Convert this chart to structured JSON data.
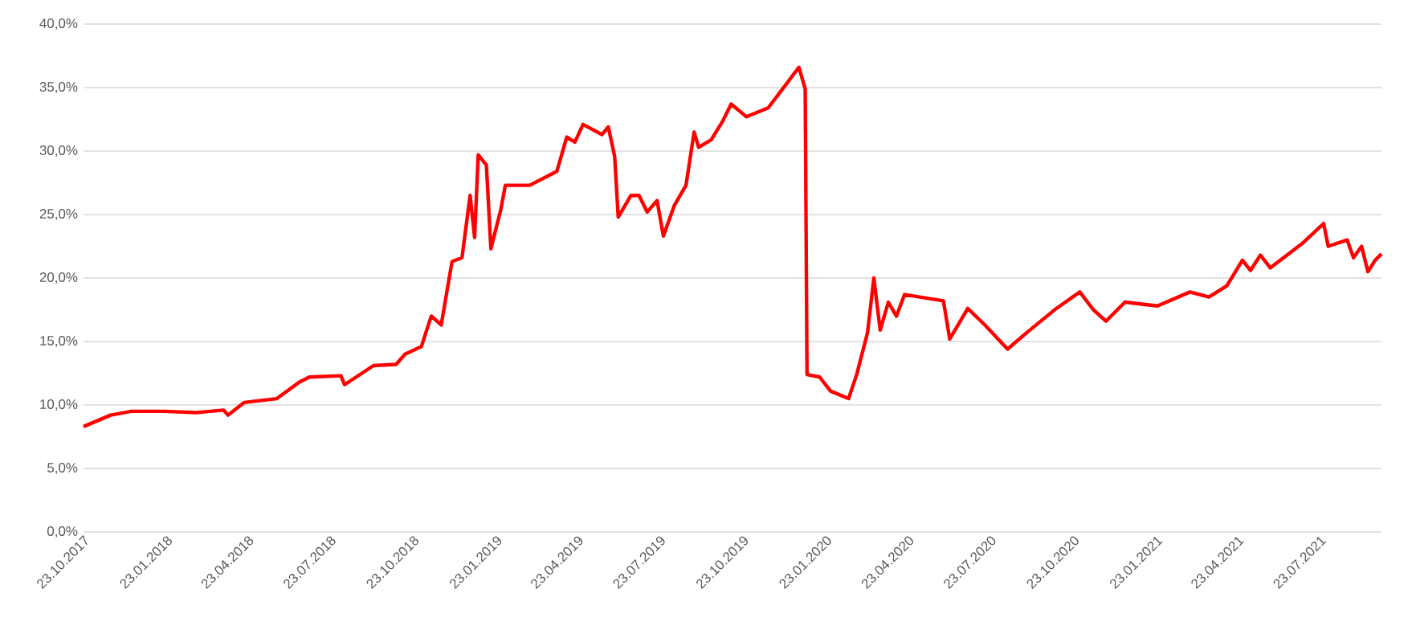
{
  "chart_data": {
    "type": "line",
    "grid": "y",
    "marker": "none",
    "line_style": "solid",
    "xlim": [
      "2017-10-23",
      "2021-09-29"
    ],
    "ylim": [
      0,
      40
    ],
    "yticks": [
      {
        "value": 0,
        "label": "0,0%"
      },
      {
        "value": 5,
        "label": "5,0%"
      },
      {
        "value": 10,
        "label": "10,0%"
      },
      {
        "value": 15,
        "label": "15,0%"
      },
      {
        "value": 20,
        "label": "20,0%"
      },
      {
        "value": 25,
        "label": "25,0%"
      },
      {
        "value": 30,
        "label": "30,0%"
      },
      {
        "value": 35,
        "label": "35,0%"
      },
      {
        "value": 40,
        "label": "40,0%"
      }
    ],
    "xticks": [
      {
        "value": "2017-10-23",
        "label": "23.10.2017"
      },
      {
        "value": "2018-01-23",
        "label": "23.01.2018"
      },
      {
        "value": "2018-04-23",
        "label": "23.04.2018"
      },
      {
        "value": "2018-07-23",
        "label": "23.07.2018"
      },
      {
        "value": "2018-10-23",
        "label": "23.10.2018"
      },
      {
        "value": "2019-01-23",
        "label": "23.01.2019"
      },
      {
        "value": "2019-04-23",
        "label": "23.04.2019"
      },
      {
        "value": "2019-07-23",
        "label": "23.07.2019"
      },
      {
        "value": "2019-10-23",
        "label": "23.10.2019"
      },
      {
        "value": "2020-01-23",
        "label": "23.01.2020"
      },
      {
        "value": "2020-04-23",
        "label": "23.04.2020"
      },
      {
        "value": "2020-07-23",
        "label": "23.07.2020"
      },
      {
        "value": "2020-10-23",
        "label": "23.10.2020"
      },
      {
        "value": "2021-01-23",
        "label": "23.01.2021"
      },
      {
        "value": "2021-04-23",
        "label": "23.04.2021"
      },
      {
        "value": "2021-07-23",
        "label": "23.07.2021"
      }
    ],
    "series": [
      {
        "color": "#ff0000",
        "x": [
          "2017-10-23",
          "2017-11-22",
          "2017-12-15",
          "2018-01-20",
          "2018-02-25",
          "2018-03-27",
          "2018-04-01",
          "2018-04-19",
          "2018-05-25",
          "2018-06-19",
          "2018-06-30",
          "2018-08-04",
          "2018-08-08",
          "2018-09-09",
          "2018-10-04",
          "2018-10-14",
          "2018-11-01",
          "2018-11-12",
          "2018-11-23",
          "2018-12-05",
          "2018-12-16",
          "2018-12-25",
          "2018-12-30",
          "2019-01-03",
          "2019-01-12",
          "2019-01-17",
          "2019-01-28",
          "2019-02-02",
          "2019-03-01",
          "2019-03-31",
          "2019-04-11",
          "2019-04-20",
          "2019-04-29",
          "2019-05-20",
          "2019-05-27",
          "2019-06-03",
          "2019-06-07",
          "2019-06-21",
          "2019-06-30",
          "2019-07-09",
          "2019-07-20",
          "2019-07-27",
          "2019-08-08",
          "2019-08-21",
          "2019-08-30",
          "2019-09-04",
          "2019-09-18",
          "2019-10-01",
          "2019-10-10",
          "2019-10-27",
          "2019-11-20",
          "2019-12-06",
          "2019-12-24",
          "2019-12-31",
          "2020-01-02",
          "2020-01-16",
          "2020-01-28",
          "2020-02-17",
          "2020-02-26",
          "2020-03-09",
          "2020-03-16",
          "2020-03-23",
          "2020-04-01",
          "2020-04-10",
          "2020-04-19",
          "2020-06-01",
          "2020-06-08",
          "2020-06-28",
          "2020-07-17",
          "2020-08-11",
          "2020-09-03",
          "2020-10-04",
          "2020-10-30",
          "2020-11-14",
          "2020-11-28",
          "2020-12-19",
          "2021-01-24",
          "2021-03-01",
          "2021-03-22",
          "2021-04-11",
          "2021-04-28",
          "2021-05-07",
          "2021-05-18",
          "2021-05-29",
          "2021-07-03",
          "2021-07-27",
          "2021-08-01",
          "2021-08-22",
          "2021-08-29",
          "2021-09-07",
          "2021-09-14",
          "2021-09-22",
          "2021-09-29"
        ],
        "values": [
          8.3,
          9.2,
          9.5,
          9.5,
          9.4,
          9.6,
          9.2,
          10.2,
          10.5,
          11.8,
          12.2,
          12.3,
          11.6,
          13.1,
          13.2,
          14.0,
          14.6,
          17.0,
          16.3,
          21.3,
          21.6,
          26.5,
          23.2,
          29.7,
          28.9,
          22.3,
          25.4,
          27.3,
          27.3,
          28.4,
          31.1,
          30.7,
          32.1,
          31.3,
          31.9,
          29.6,
          24.8,
          26.5,
          26.5,
          25.2,
          26.1,
          23.3,
          25.7,
          27.3,
          31.5,
          30.3,
          30.9,
          32.4,
          33.7,
          32.7,
          33.4,
          34.9,
          36.6,
          34.9,
          12.4,
          12.2,
          11.1,
          10.5,
          12.4,
          15.7,
          20.0,
          15.9,
          18.1,
          17.0,
          18.7,
          18.2,
          15.2,
          17.6,
          16.3,
          14.4,
          15.8,
          17.6,
          18.9,
          17.5,
          16.6,
          18.1,
          17.8,
          18.9,
          18.5,
          19.4,
          21.4,
          20.6,
          21.8,
          20.8,
          22.7,
          24.3,
          22.5,
          23.0,
          21.6,
          22.5,
          20.5,
          21.4,
          21.9
        ]
      }
    ]
  }
}
